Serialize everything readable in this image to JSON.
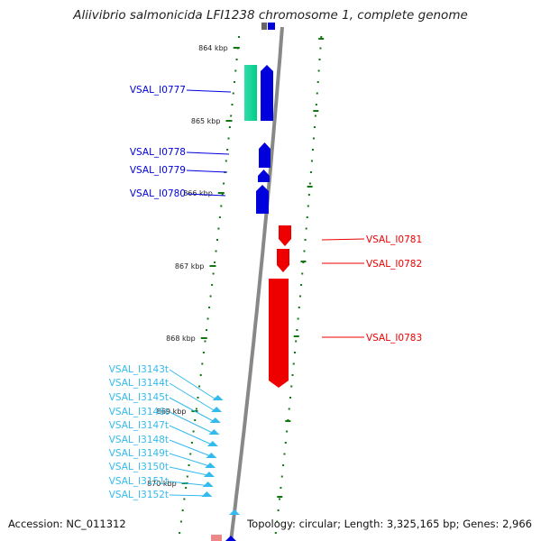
{
  "title": "Aliivibrio salmonicida LFI1238 chromosome 1, complete genome",
  "footer": {
    "accession": "Accession: NC_011312",
    "topology": "Topology: circular; Length: 3,325,165 bp; Genes: 2,966"
  },
  "ticks": [
    "864 kbp",
    "865 kbp",
    "866 kbp",
    "867 kbp",
    "868 kbp",
    "869 kbp",
    "870 kbp"
  ],
  "genes_forward": [
    {
      "name": "VSAL_I0777",
      "color": "#0000dd"
    },
    {
      "name": "VSAL_I0778",
      "color": "#0000dd"
    },
    {
      "name": "VSAL_I0779",
      "color": "#0000dd"
    },
    {
      "name": "VSAL_I0780",
      "color": "#0000dd"
    }
  ],
  "genes_reverse": [
    {
      "name": "VSAL_I0781",
      "color": "#ee0000"
    },
    {
      "name": "VSAL_I0782",
      "color": "#ee0000"
    },
    {
      "name": "VSAL_I0783",
      "color": "#ee0000"
    }
  ],
  "trna_genes": [
    {
      "name": "VSAL_I3143t"
    },
    {
      "name": "VSAL_I3144t"
    },
    {
      "name": "VSAL_I3145t"
    },
    {
      "name": "VSAL_I3146t"
    },
    {
      "name": "VSAL_I3147t"
    },
    {
      "name": "VSAL_I3148t"
    },
    {
      "name": "VSAL_I3149t"
    },
    {
      "name": "VSAL_I3150t"
    },
    {
      "name": "VSAL_I3151t"
    },
    {
      "name": "VSAL_I3152t"
    }
  ],
  "colors": {
    "forward_cds": "#0000dd",
    "reverse_cds": "#ee0000",
    "trna": "#33bbee",
    "rrna_feature": "#22dd99",
    "tick_marks": "#117711",
    "backbone": "#888888"
  }
}
